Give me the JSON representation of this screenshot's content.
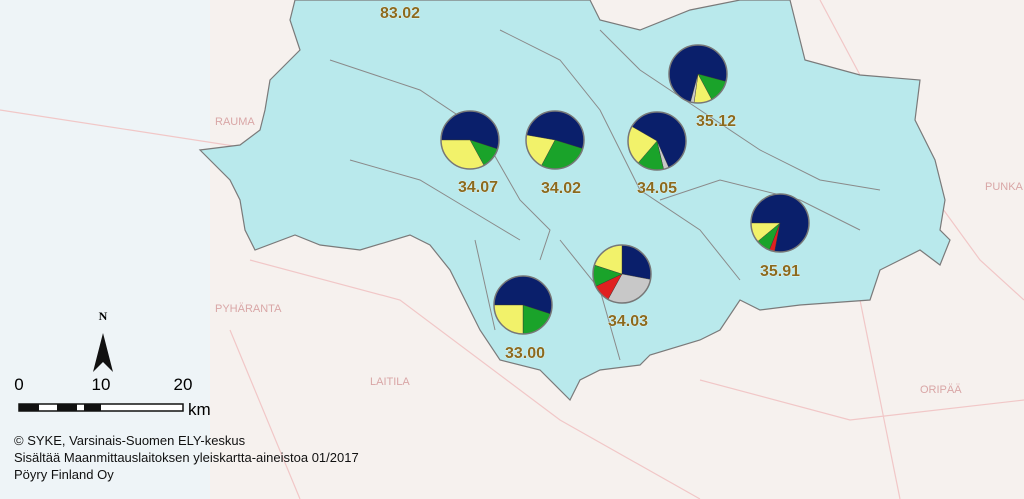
{
  "pies": [
    {
      "label": "35.12",
      "slices": [
        {
          "color": "#0a1f6b",
          "value": 75
        },
        {
          "color": "#1aa32a",
          "value": 13
        },
        {
          "color": "#f2f26a",
          "value": 10
        },
        {
          "color": "#c8c8c8",
          "value": 2
        }
      ]
    },
    {
      "label": "34.07",
      "slices": [
        {
          "color": "#0a1f6b",
          "value": 55
        },
        {
          "color": "#1aa32a",
          "value": 12
        },
        {
          "color": "#f2f26a",
          "value": 33
        }
      ]
    },
    {
      "label": "34.02",
      "slices": [
        {
          "color": "#0a1f6b",
          "value": 52
        },
        {
          "color": "#1aa32a",
          "value": 28
        },
        {
          "color": "#f2f26a",
          "value": 20
        }
      ]
    },
    {
      "label": "34.05",
      "slices": [
        {
          "color": "#0a1f6b",
          "value": 60
        },
        {
          "color": "#c8c8c8",
          "value": 3
        },
        {
          "color": "#1aa32a",
          "value": 15
        },
        {
          "color": "#f2f26a",
          "value": 22
        }
      ]
    },
    {
      "label": "35.91",
      "slices": [
        {
          "color": "#0a1f6b",
          "value": 78
        },
        {
          "color": "#e02020",
          "value": 3
        },
        {
          "color": "#1aa32a",
          "value": 8
        },
        {
          "color": "#f2f26a",
          "value": 11
        }
      ]
    },
    {
      "label": "34.03",
      "slices": [
        {
          "color": "#0a1f6b",
          "value": 28
        },
        {
          "color": "#c8c8c8",
          "value": 30
        },
        {
          "color": "#e02020",
          "value": 10
        },
        {
          "color": "#1aa32a",
          "value": 12
        },
        {
          "color": "#f2f26a",
          "value": 20
        }
      ]
    },
    {
      "label": "33.00",
      "slices": [
        {
          "color": "#0a1f6b",
          "value": 55
        },
        {
          "color": "#1aa32a",
          "value": 20
        },
        {
          "color": "#f2f26a",
          "value": 25
        }
      ]
    }
  ],
  "top_label": "83.02",
  "place_names": [
    "RAUMA",
    "PYHÄRANTA",
    "LAITILA",
    "ORIPÄÄ",
    "PUNKA"
  ],
  "scale": {
    "north": "N",
    "ticks": [
      "0",
      "10",
      "20"
    ],
    "unit": "km"
  },
  "credits": [
    "© SYKE, Varsinais-Suomen ELY-keskus",
    "Sisältää Maanmittauslaitoksen yleiskartta-aineistoa 01/2017",
    "Pöyry Finland Oy"
  ]
}
